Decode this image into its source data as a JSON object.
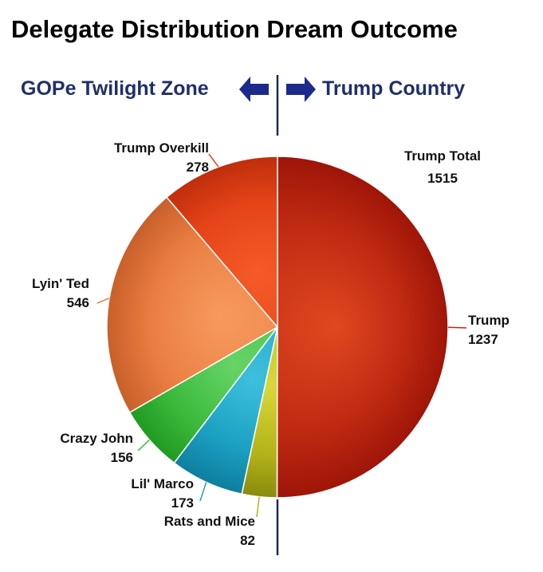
{
  "title": "Delegate Distribution Dream Outcome",
  "header": {
    "left_label": "GOPe Twilight Zone",
    "right_label": "Trump Country",
    "label_color": "#1f2f6b",
    "arrow_color": "#1c2a8c",
    "divider_color": "#1a2a55"
  },
  "summary": {
    "label": "Trump Total",
    "value": "1515"
  },
  "chart_data": {
    "type": "pie",
    "title": "Delegate Distribution Dream Outcome",
    "slices": [
      {
        "name": "Trump",
        "value": 1237,
        "display": "1237",
        "color": "#c02a12",
        "color_light": "#e0481f",
        "color_dark": "#9e1508"
      },
      {
        "name": "Rats and Mice",
        "value": 82,
        "display": "82",
        "color": "#b4b41a",
        "color_light": "#d8d83a",
        "color_dark": "#8a8a0e"
      },
      {
        "name": "Lil' Marco",
        "value": 173,
        "display": "173",
        "color": "#1ba0c2",
        "color_light": "#3cc0dc",
        "color_dark": "#0e7e9e"
      },
      {
        "name": "Crazy John",
        "value": 156,
        "display": "156",
        "color": "#3cba3c",
        "color_light": "#66d466",
        "color_dark": "#229a22"
      },
      {
        "name": "Lyin' Ted",
        "value": 546,
        "display": "546",
        "color": "#ea7e42",
        "color_light": "#f79a5e",
        "color_dark": "#c8602a"
      },
      {
        "name": "Trump Overkill",
        "value": 278,
        "display": "278",
        "color": "#e44418",
        "color_light": "#f55a28",
        "color_dark": "#c02e0c"
      }
    ]
  }
}
